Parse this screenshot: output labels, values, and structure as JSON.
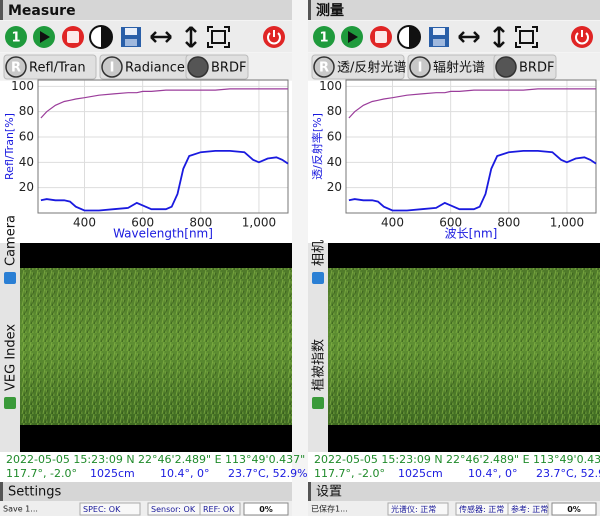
{
  "chart_data": {
    "type": "line",
    "x": [
      250,
      270,
      300,
      330,
      350,
      370,
      400,
      450,
      500,
      550,
      580,
      600,
      630,
      680,
      700,
      720,
      740,
      760,
      800,
      850,
      900,
      950,
      980,
      1000,
      1030,
      1060,
      1080,
      1100
    ],
    "series": [
      {
        "color": "#1a1adf",
        "values": [
          10,
          11,
          10,
          10,
          9,
          5,
          2,
          2,
          3,
          4,
          8,
          6,
          3,
          3,
          5,
          15,
          35,
          45,
          48,
          49,
          49,
          48,
          42,
          40,
          43,
          44,
          42,
          39
        ]
      },
      {
        "color": "#9b3d9b",
        "values": [
          75,
          80,
          85,
          88,
          89,
          90,
          91,
          93,
          94,
          95,
          95,
          96,
          96,
          97,
          97,
          97,
          97,
          97,
          97,
          97,
          98,
          98,
          98,
          98,
          98,
          98,
          98,
          98
        ]
      }
    ],
    "xlim": [
      240,
      1100
    ],
    "ylim": [
      0,
      105
    ],
    "xticks": [
      400,
      600,
      800,
      {
        "value": 1000,
        "label": "1,000"
      }
    ],
    "yticks": [
      20,
      40,
      60,
      80,
      100
    ]
  },
  "panels": [
    {
      "title": "Measure",
      "toolbar_icon": "1",
      "tabs": [
        {
          "icon": "R",
          "label": "Refl/Tran"
        },
        {
          "icon": "I",
          "label": "Radiance"
        },
        {
          "label": "BRDF"
        }
      ],
      "y_label": "Refl/Tran[%]",
      "x_label": "Wavelength[nm]",
      "side_tabs": [
        "Camera",
        "VEG Index"
      ],
      "info_line1": "2022-05-05 15:23:09  N 22°46'2.489\"  E 113°49'0.437\"",
      "info_line2": [
        "117.7°, -2.0°",
        "1025cm",
        "10.4°, 0°",
        "23.7°C, 52.9%"
      ],
      "footer_title": "Settings",
      "status": {
        "message": "Save 1...",
        "items": [
          "SPEC: OK",
          "Sensor: OK",
          "REF: OK"
        ],
        "progress": "0%"
      }
    },
    {
      "title": "测量",
      "toolbar_icon": "1",
      "tabs": [
        {
          "icon": "R",
          "label": "透/反射光谱"
        },
        {
          "icon": "I",
          "label": "辐射光谱"
        },
        {
          "label": "BRDF"
        }
      ],
      "y_label": "透/反射率[%]",
      "x_label": "波长[nm]",
      "side_tabs": [
        "相机",
        "植被指数"
      ],
      "info_line1": "2022-05-05 15:23:09  N 22°46'2.489\"  E 113°49'0.437\"",
      "info_line2": [
        "117.7°, -2.0°",
        "1025cm",
        "10.4°, 0°",
        "23.7°C, 52.9%"
      ],
      "footer_title": "设置",
      "status": {
        "message": "已保存1...",
        "items": [
          "光谱仪: 正常",
          "传感器: 正常",
          "参考: 正常"
        ],
        "progress": "0%"
      }
    }
  ]
}
